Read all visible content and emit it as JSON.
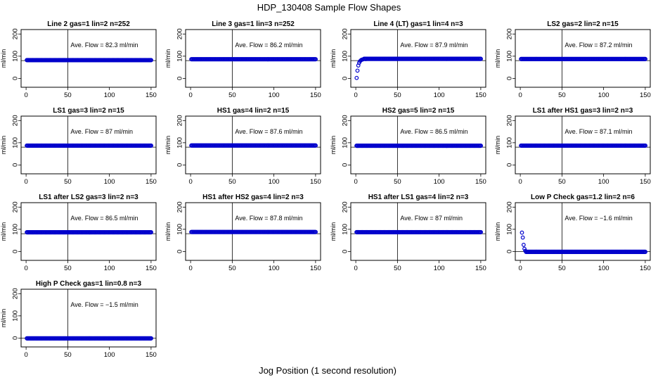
{
  "figure": {
    "title": "HDP_130408  Sample Flow Shapes",
    "xlabel": "Jog Position (1 second resolution)",
    "point_color": "#0000cc"
  },
  "chart_data": [
    {
      "type": "scatter",
      "title": "Line 2 gas=1 lin=2 n=252",
      "annotation": "Ave. Flow =  82.3  ml/min",
      "ylabel": "ml/min",
      "xlim": [
        0,
        150
      ],
      "ylim": [
        -40,
        220
      ],
      "xticks": [
        0,
        50,
        100,
        150
      ],
      "yticks": [
        0,
        100,
        200
      ],
      "vline_x": 50,
      "hline_y": 80,
      "series": [
        {
          "x_start": 1,
          "x_end": 150,
          "x_step": 1,
          "y": 82.3
        }
      ]
    },
    {
      "type": "scatter",
      "title": "Line 3 gas=1 lin=3 n=252",
      "annotation": "Ave. Flow =  86.2  ml/min",
      "ylabel": "ml/min",
      "xlim": [
        0,
        150
      ],
      "ylim": [
        -40,
        220
      ],
      "xticks": [
        0,
        50,
        100,
        150
      ],
      "yticks": [
        0,
        100,
        200
      ],
      "vline_x": 50,
      "hline_y": 80,
      "series": [
        {
          "x_start": 1,
          "x_end": 150,
          "x_step": 1,
          "y": 86.2
        }
      ]
    },
    {
      "type": "scatter",
      "title": "Line 4 (LT) gas=1 lin=4 n=3",
      "annotation": "Ave. Flow =  87.9  ml/min",
      "ylabel": "ml/min",
      "xlim": [
        0,
        150
      ],
      "ylim": [
        -40,
        220
      ],
      "xticks": [
        0,
        50,
        100,
        150
      ],
      "yticks": [
        0,
        100,
        200
      ],
      "vline_x": 50,
      "hline_y": 80,
      "series": [
        {
          "x_start": 10,
          "x_end": 150,
          "x_step": 1,
          "y": 87.9,
          "lead": [
            [
              1,
              2
            ],
            [
              2,
              35
            ],
            [
              3,
              58
            ],
            [
              4,
              70
            ],
            [
              5,
              77
            ],
            [
              6,
              81
            ],
            [
              7,
              84
            ],
            [
              8,
              85
            ],
            [
              9,
              86
            ],
            [
              12,
              87
            ],
            [
              18,
              88
            ],
            [
              25,
              88
            ]
          ]
        }
      ]
    },
    {
      "type": "scatter",
      "title": "LS2 gas=2 lin=2 n=15",
      "annotation": "Ave. Flow =  87.2  ml/min",
      "ylabel": "ml/min",
      "xlim": [
        0,
        150
      ],
      "ylim": [
        -40,
        220
      ],
      "xticks": [
        0,
        50,
        100,
        150
      ],
      "yticks": [
        0,
        100,
        200
      ],
      "vline_x": 50,
      "hline_y": 80,
      "series": [
        {
          "x_start": 1,
          "x_end": 150,
          "x_step": 1,
          "y": 87.2
        }
      ]
    },
    {
      "type": "scatter",
      "title": "LS1 gas=3 lin=2 n=15",
      "annotation": "Ave. Flow =  87  ml/min",
      "ylabel": "ml/min",
      "xlim": [
        0,
        150
      ],
      "ylim": [
        -40,
        220
      ],
      "xticks": [
        0,
        50,
        100,
        150
      ],
      "yticks": [
        0,
        100,
        200
      ],
      "vline_x": 50,
      "hline_y": 80,
      "series": [
        {
          "x_start": 1,
          "x_end": 150,
          "x_step": 1,
          "y": 87
        }
      ]
    },
    {
      "type": "scatter",
      "title": "HS1 gas=4 lin=2 n=15",
      "annotation": "Ave. Flow =  87.6  ml/min",
      "ylabel": "ml/min",
      "xlim": [
        0,
        150
      ],
      "ylim": [
        -40,
        220
      ],
      "xticks": [
        0,
        50,
        100,
        150
      ],
      "yticks": [
        0,
        100,
        200
      ],
      "vline_x": 50,
      "hline_y": 80,
      "series": [
        {
          "x_start": 1,
          "x_end": 150,
          "x_step": 1,
          "y": 87.6
        }
      ]
    },
    {
      "type": "scatter",
      "title": "HS2 gas=5 lin=2 n=15",
      "annotation": "Ave. Flow =  86.5  ml/min",
      "ylabel": "ml/min",
      "xlim": [
        0,
        150
      ],
      "ylim": [
        -40,
        220
      ],
      "xticks": [
        0,
        50,
        100,
        150
      ],
      "yticks": [
        0,
        100,
        200
      ],
      "vline_x": 50,
      "hline_y": 80,
      "series": [
        {
          "x_start": 1,
          "x_end": 150,
          "x_step": 1,
          "y": 86.5
        }
      ]
    },
    {
      "type": "scatter",
      "title": "LS1 after HS1 gas=3 lin=2 n=3",
      "annotation": "Ave. Flow =  87.1  ml/min",
      "ylabel": "ml/min",
      "xlim": [
        0,
        150
      ],
      "ylim": [
        -40,
        220
      ],
      "xticks": [
        0,
        50,
        100,
        150
      ],
      "yticks": [
        0,
        100,
        200
      ],
      "vline_x": 50,
      "hline_y": 80,
      "series": [
        {
          "x_start": 1,
          "x_end": 150,
          "x_step": 1,
          "y": 87.1
        }
      ]
    },
    {
      "type": "scatter",
      "title": "LS1 after LS2 gas=3 lin=2 n=3",
      "annotation": "Ave. Flow =  86.5  ml/min",
      "ylabel": "ml/min",
      "xlim": [
        0,
        150
      ],
      "ylim": [
        -40,
        220
      ],
      "xticks": [
        0,
        50,
        100,
        150
      ],
      "yticks": [
        0,
        100,
        200
      ],
      "vline_x": 50,
      "hline_y": 80,
      "series": [
        {
          "x_start": 1,
          "x_end": 150,
          "x_step": 1,
          "y": 86.5
        }
      ]
    },
    {
      "type": "scatter",
      "title": "HS1 after HS2 gas=4 lin=2 n=3",
      "annotation": "Ave. Flow =  87.8  ml/min",
      "ylabel": "ml/min",
      "xlim": [
        0,
        150
      ],
      "ylim": [
        -40,
        220
      ],
      "xticks": [
        0,
        50,
        100,
        150
      ],
      "yticks": [
        0,
        100,
        200
      ],
      "vline_x": 50,
      "hline_y": 80,
      "series": [
        {
          "x_start": 1,
          "x_end": 150,
          "x_step": 1,
          "y": 87.8
        }
      ]
    },
    {
      "type": "scatter",
      "title": "HS1 after LS1 gas=4 lin=2 n=3",
      "annotation": "Ave. Flow =  87  ml/min",
      "ylabel": "ml/min",
      "xlim": [
        0,
        150
      ],
      "ylim": [
        -40,
        220
      ],
      "xticks": [
        0,
        50,
        100,
        150
      ],
      "yticks": [
        0,
        100,
        200
      ],
      "vline_x": 50,
      "hline_y": 80,
      "series": [
        {
          "x_start": 1,
          "x_end": 150,
          "x_step": 1,
          "y": 87
        }
      ]
    },
    {
      "type": "scatter",
      "title": "Low P Check gas=1.2 lin=2 n=6",
      "annotation": "Ave. Flow =  −1.6  ml/min",
      "ylabel": "ml/min",
      "xlim": [
        0,
        150
      ],
      "ylim": [
        -40,
        220
      ],
      "xticks": [
        0,
        50,
        100,
        150
      ],
      "yticks": [
        0,
        100,
        200
      ],
      "vline_x": 50,
      "hline_y": 0,
      "series": [
        {
          "x_start": 7,
          "x_end": 150,
          "x_step": 1,
          "y": -1.6,
          "lead": [
            [
              2,
              85
            ],
            [
              3,
              63
            ],
            [
              4,
              30
            ],
            [
              5,
              12
            ],
            [
              6,
              3
            ]
          ]
        }
      ]
    },
    {
      "type": "scatter",
      "title": "High P Check gas=1 lin=0.8 n=3",
      "annotation": "Ave. Flow =  −1.5  ml/min",
      "ylabel": "ml/min",
      "xlim": [
        0,
        150
      ],
      "ylim": [
        -40,
        220
      ],
      "xticks": [
        0,
        50,
        100,
        150
      ],
      "yticks": [
        0,
        100,
        200
      ],
      "vline_x": 50,
      "hline_y": 0,
      "series": [
        {
          "x_start": 1,
          "x_end": 150,
          "x_step": 1,
          "y": -1.5
        }
      ]
    }
  ]
}
